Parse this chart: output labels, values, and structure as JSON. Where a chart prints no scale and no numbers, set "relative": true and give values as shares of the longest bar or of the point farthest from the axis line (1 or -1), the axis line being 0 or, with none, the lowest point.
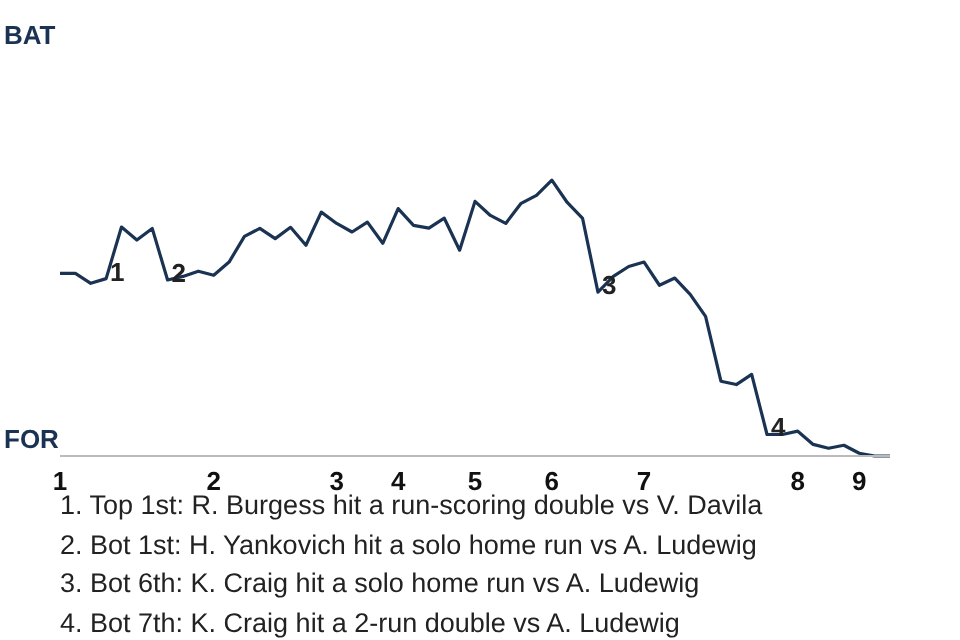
{
  "chart_data": {
    "type": "line",
    "relative": true,
    "categories": [
      "1",
      null,
      null,
      null,
      null,
      null,
      null,
      null,
      null,
      null,
      "2",
      null,
      null,
      null,
      null,
      null,
      null,
      null,
      "3",
      null,
      null,
      null,
      "4",
      null,
      null,
      null,
      null,
      "5",
      null,
      null,
      null,
      null,
      "6",
      null,
      null,
      null,
      null,
      null,
      "7",
      null,
      null,
      null,
      null,
      null,
      null,
      null,
      null,
      null,
      "8",
      null,
      null,
      null,
      "9",
      null,
      null
    ],
    "series": [
      {
        "color": "#1b3353",
        "values": [
          0.662,
          0.662,
          0.626,
          0.643,
          0.83,
          0.783,
          0.825,
          0.638,
          0.651,
          0.67,
          0.655,
          0.703,
          0.796,
          0.825,
          0.788,
          0.829,
          0.764,
          0.884,
          0.843,
          0.812,
          0.848,
          0.771,
          0.897,
          0.836,
          0.826,
          0.862,
          0.746,
          0.923,
          0.872,
          0.843,
          0.916,
          0.945,
          1,
          0.919,
          0.861,
          0.594,
          0.651,
          0.687,
          0.703,
          0.619,
          0.645,
          0.586,
          0.506,
          0.271,
          0.259,
          0.296,
          0.078,
          0.078,
          0.09,
          0.042,
          0.028,
          0.039,
          0.01,
          0,
          0
        ]
      }
    ],
    "marker": "none",
    "line_style": "solid",
    "annotations": [
      "BAT",
      "FOR",
      {
        "text": "1",
        "y": 0.643
      },
      {
        "text": "2",
        "y": 0.638
      },
      {
        "text": "3",
        "y": 0.594
      },
      {
        "text": "4",
        "y": 0.078
      },
      "1. Top 1st: R. Burgess hit a run-scoring double vs V. Davila",
      "2. Bot 1st: H. Yankovich hit a solo home run vs A. Ludewig",
      "3. Bot 6th: K. Craig hit a solo home run vs A. Ludewig",
      "4. Bot 7th: K. Craig hit a 2-run double vs A. Ludewig"
    ]
  }
}
